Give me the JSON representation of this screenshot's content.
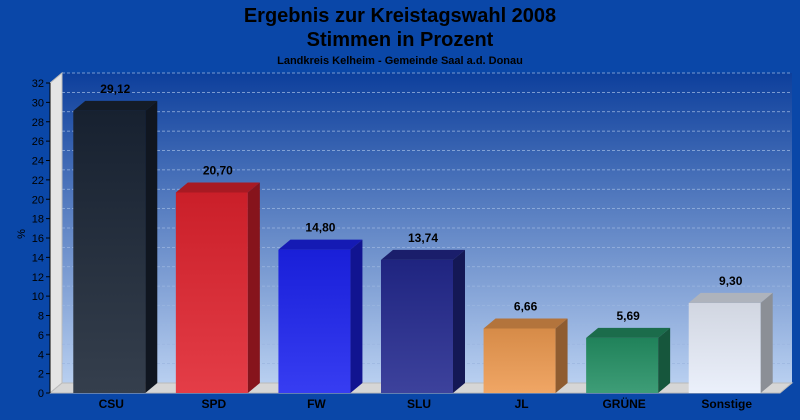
{
  "chart_data": {
    "type": "bar",
    "title_line1": "Ergebnis zur Kreistagswahl 2008",
    "title_line2": "Stimmen in Prozent",
    "subtitle": "Landkreis Kelheim - Gemeinde Saal a.d. Donau",
    "ylabel": "%",
    "xlabel": "",
    "categories": [
      "CSU",
      "SPD",
      "FW",
      "SLU",
      "JL",
      "GRÜNE",
      "Sonstige"
    ],
    "values": [
      29.12,
      20.7,
      14.8,
      13.74,
      6.66,
      5.69,
      9.3
    ],
    "value_labels": [
      "29,12",
      "20,70",
      "14,80",
      "13,74",
      "6,66",
      "5,69",
      "9,30"
    ],
    "colors": [
      "#1a2535",
      "#e0222e",
      "#1c22f0",
      "#22288e",
      "#ee9a50",
      "#249064",
      "#e8eefa"
    ],
    "ylim": [
      0,
      32
    ],
    "ytick_step": 2,
    "grid": true
  }
}
